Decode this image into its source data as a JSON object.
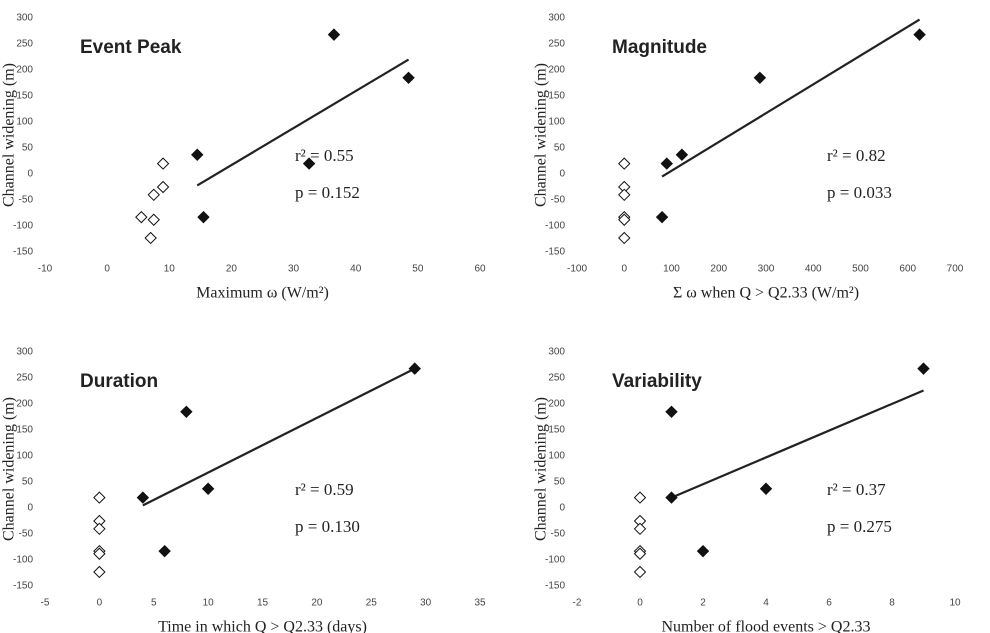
{
  "chart_data": [
    {
      "type": "scatter",
      "title": "Event Peak",
      "x_label": "Maximum ω (W/m²)",
      "y_label": "Channel widening (m)",
      "xlim": [
        -10,
        60
      ],
      "xticks": [
        -10,
        0,
        10,
        20,
        30,
        40,
        50,
        60
      ],
      "ylim": [
        -150,
        300
      ],
      "yticks": [
        -150,
        -100,
        -50,
        0,
        50,
        100,
        150,
        200,
        250,
        300
      ],
      "series": [
        {
          "color": "#111111",
          "fill": "#111111",
          "x": [
            36.5,
            48.5,
            14.5,
            32.5,
            15.5
          ],
          "y": [
            268,
            185,
            37,
            20,
            -83
          ]
        },
        {
          "color": "#111111",
          "fill": "#ffffff",
          "x": [
            9,
            9,
            7.5,
            5.5,
            7.5,
            7
          ],
          "y": [
            20,
            -25,
            -40,
            -83,
            -88,
            -123
          ]
        }
      ],
      "trend": {
        "color": "#222222",
        "x": [
          14.5,
          48.5
        ],
        "y": [
          -22,
          220
        ]
      },
      "annotations": [
        "r² = 0.55",
        "p = 0.152"
      ]
    },
    {
      "type": "scatter",
      "title": "Magnitude",
      "x_label": "Σ ω when Q > Q2.33 (W/m²)",
      "y_label": "Channel widening (m)",
      "xlim": [
        -100,
        700
      ],
      "xticks": [
        -100,
        0,
        100,
        200,
        300,
        400,
        500,
        600,
        700
      ],
      "ylim": [
        -150,
        300
      ],
      "yticks": [
        -150,
        -100,
        -50,
        0,
        50,
        100,
        150,
        200,
        250,
        300
      ],
      "series": [
        {
          "color": "#111111",
          "fill": "#111111",
          "x": [
            625,
            287,
            122,
            90,
            80
          ],
          "y": [
            268,
            185,
            37,
            20,
            -83
          ]
        },
        {
          "color": "#111111",
          "fill": "#ffffff",
          "x": [
            0,
            0,
            0,
            0,
            0,
            0
          ],
          "y": [
            20,
            -25,
            -40,
            -83,
            -88,
            -123
          ]
        }
      ],
      "trend": {
        "color": "#222222",
        "x": [
          80,
          625
        ],
        "y": [
          -5,
          297
        ]
      },
      "annotations": [
        "r² = 0.82",
        "p = 0.033"
      ]
    },
    {
      "type": "scatter",
      "title": "Duration",
      "x_label": "Time in which Q > Q2.33 (days)",
      "y_label": "Channel widening (m)",
      "xlim": [
        -5,
        35
      ],
      "xticks": [
        -5,
        0,
        5,
        10,
        15,
        20,
        25,
        30,
        35
      ],
      "ylim": [
        -150,
        300
      ],
      "yticks": [
        -150,
        -100,
        -50,
        0,
        50,
        100,
        150,
        200,
        250,
        300
      ],
      "series": [
        {
          "color": "#111111",
          "fill": "#111111",
          "x": [
            29,
            8,
            10,
            4,
            6
          ],
          "y": [
            268,
            185,
            37,
            20,
            -83
          ]
        },
        {
          "color": "#111111",
          "fill": "#ffffff",
          "x": [
            0,
            0,
            0,
            0,
            0,
            0
          ],
          "y": [
            20,
            -25,
            -40,
            -83,
            -88,
            -123
          ]
        }
      ],
      "trend": {
        "color": "#222222",
        "x": [
          4,
          29
        ],
        "y": [
          5,
          268
        ]
      },
      "annotations": [
        "r² = 0.59",
        "p = 0.130"
      ]
    },
    {
      "type": "scatter",
      "title": "Variability",
      "x_label": "Number of flood events > Q2.33",
      "y_label": "Channel widening (m)",
      "xlim": [
        -2,
        10
      ],
      "xticks": [
        -2,
        0,
        2,
        4,
        6,
        8,
        10
      ],
      "ylim": [
        -150,
        300
      ],
      "yticks": [
        -150,
        -100,
        -50,
        0,
        50,
        100,
        150,
        200,
        250,
        300
      ],
      "series": [
        {
          "color": "#111111",
          "fill": "#111111",
          "x": [
            9,
            1,
            4,
            1,
            2
          ],
          "y": [
            268,
            185,
            37,
            20,
            -83
          ]
        },
        {
          "color": "#111111",
          "fill": "#ffffff",
          "x": [
            0,
            0,
            0,
            0,
            0,
            0
          ],
          "y": [
            20,
            -25,
            -40,
            -83,
            -88,
            -123
          ]
        }
      ],
      "trend": {
        "color": "#222222",
        "x": [
          1,
          9
        ],
        "y": [
          20,
          226
        ]
      },
      "annotations": [
        "r² = 0.37",
        "p = 0.275"
      ]
    }
  ]
}
